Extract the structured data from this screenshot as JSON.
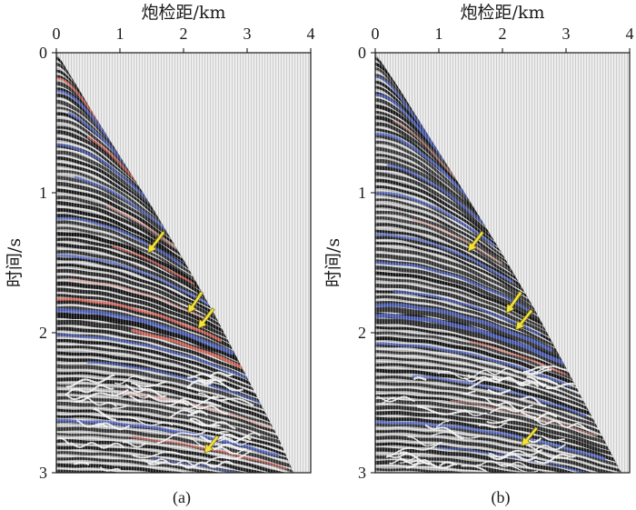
{
  "colors": {
    "arrow": "#f3e23a",
    "event_blue": "#4f63c1",
    "event_red": "#e0675a",
    "event_pink": "#e8a197",
    "blank_background": "#ededed"
  },
  "chart_data": [
    {
      "panel_label": "(a)",
      "type": "heatmap",
      "xlabel": "炮检距/km",
      "ylabel": "时间/s",
      "xlim": [
        0,
        4
      ],
      "ylim": [
        0,
        3
      ],
      "y_inverted": true,
      "xaxis_position": "top",
      "xticks": [
        0,
        1,
        2,
        3,
        4
      ],
      "yticks": [
        0,
        1,
        2,
        3
      ],
      "grid": false,
      "first_break_edge": [
        [
          0.03,
          0.02
        ],
        [
          0.3,
          0.22
        ],
        [
          0.6,
          0.45
        ],
        [
          1.0,
          0.74
        ],
        [
          1.5,
          1.1
        ],
        [
          2.0,
          1.48
        ],
        [
          2.5,
          1.88
        ],
        [
          3.0,
          2.32
        ],
        [
          3.5,
          2.76
        ],
        [
          3.73,
          3.0
        ]
      ],
      "arrows": [
        {
          "from": [
            1.69,
            1.28
          ],
          "to": [
            1.44,
            1.43
          ]
        },
        {
          "from": [
            2.29,
            1.71
          ],
          "to": [
            2.07,
            1.86
          ]
        },
        {
          "from": [
            2.47,
            1.83
          ],
          "to": [
            2.23,
            1.97
          ]
        },
        {
          "from": [
            2.54,
            2.74
          ],
          "to": [
            2.33,
            2.86
          ]
        }
      ]
    },
    {
      "panel_label": "(b)",
      "type": "heatmap",
      "xlabel": "炮检距/km",
      "ylabel": "时间/s",
      "xlim": [
        0,
        4
      ],
      "ylim": [
        0,
        3
      ],
      "y_inverted": true,
      "xaxis_position": "top",
      "xticks": [
        0,
        1,
        2,
        3,
        4
      ],
      "yticks": [
        0,
        1,
        2,
        3
      ],
      "grid": false,
      "first_break_edge": [
        [
          0.03,
          0.02
        ],
        [
          0.3,
          0.2
        ],
        [
          0.6,
          0.42
        ],
        [
          1.0,
          0.71
        ],
        [
          1.5,
          1.07
        ],
        [
          2.0,
          1.44
        ],
        [
          2.5,
          1.83
        ],
        [
          3.0,
          2.25
        ],
        [
          3.5,
          2.68
        ],
        [
          3.87,
          3.0
        ]
      ],
      "arrows": [
        {
          "from": [
            1.69,
            1.28
          ],
          "to": [
            1.46,
            1.42
          ]
        },
        {
          "from": [
            2.29,
            1.71
          ],
          "to": [
            2.06,
            1.86
          ]
        },
        {
          "from": [
            2.46,
            1.84
          ],
          "to": [
            2.21,
            1.98
          ]
        },
        {
          "from": [
            2.54,
            2.68
          ],
          "to": [
            2.3,
            2.81
          ]
        }
      ]
    }
  ]
}
